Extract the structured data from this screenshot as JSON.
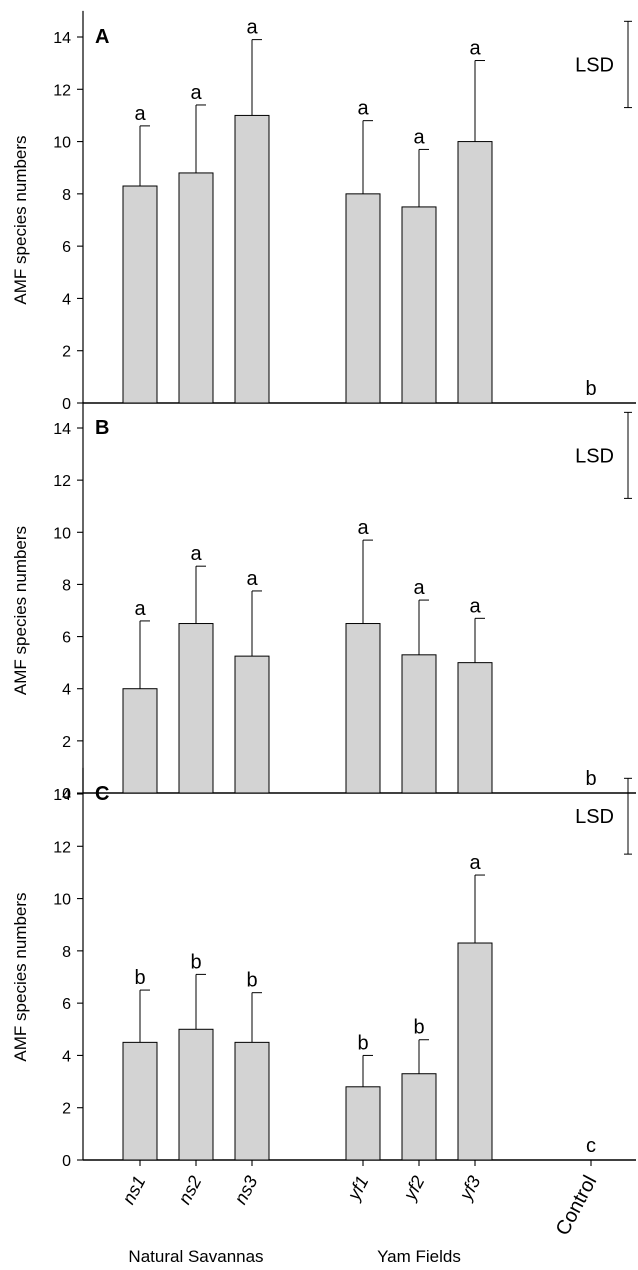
{
  "chart_data": [
    {
      "type": "bar",
      "panel_label": "A",
      "categories": [
        "ns1",
        "ns2",
        "ns3",
        "yf1",
        "yf2",
        "yf3",
        "Control"
      ],
      "values": [
        8.3,
        8.8,
        11.0,
        8.0,
        7.5,
        10.0,
        0
      ],
      "errors": [
        2.3,
        2.6,
        2.9,
        2.8,
        2.2,
        3.1,
        0
      ],
      "letters": [
        "a",
        "a",
        "a",
        "a",
        "a",
        "a",
        "b"
      ],
      "ylabel": "AMF species numbers",
      "ylim": [
        0,
        15
      ],
      "yticks": [
        0,
        2,
        4,
        6,
        8,
        10,
        12,
        14
      ],
      "lsd": {
        "label": "LSD",
        "top": 14.6,
        "bottom": 11.3
      }
    },
    {
      "type": "bar",
      "panel_label": "B",
      "categories": [
        "ns1",
        "ns2",
        "ns3",
        "yf1",
        "yf2",
        "yf3",
        "Control"
      ],
      "values": [
        4.0,
        6.5,
        5.25,
        6.5,
        5.3,
        5.0,
        0
      ],
      "errors": [
        2.6,
        2.2,
        2.5,
        3.2,
        2.1,
        1.7,
        0
      ],
      "letters": [
        "a",
        "a",
        "a",
        "a",
        "a",
        "a",
        "b"
      ],
      "ylabel": "AMF species numbers",
      "ylim": [
        0,
        15
      ],
      "yticks": [
        0,
        2,
        4,
        6,
        8,
        10,
        12,
        14
      ],
      "lsd": {
        "label": "LSD",
        "top": 14.6,
        "bottom": 11.3
      }
    },
    {
      "type": "bar",
      "panel_label": "C",
      "categories": [
        "ns1",
        "ns2",
        "ns3",
        "yf1",
        "yf2",
        "yf3",
        "Control"
      ],
      "values": [
        4.5,
        5.0,
        4.5,
        2.8,
        3.3,
        8.3,
        0
      ],
      "errors": [
        2.0,
        2.1,
        1.9,
        1.2,
        1.3,
        2.6,
        0
      ],
      "letters": [
        "b",
        "b",
        "b",
        "b",
        "b",
        "a",
        "c"
      ],
      "ylabel": "AMF species numbers",
      "ylim": [
        0,
        15
      ],
      "yticks": [
        0,
        2,
        4,
        6,
        8,
        10,
        12,
        14
      ],
      "lsd": {
        "label": "LSD",
        "top": 14.6,
        "bottom": 11.7
      }
    }
  ],
  "group_labels": [
    "Natural Savannas",
    "Yam Fields"
  ],
  "colors": {
    "bar_fill": "#d3d3d3",
    "stroke": "#000000"
  }
}
